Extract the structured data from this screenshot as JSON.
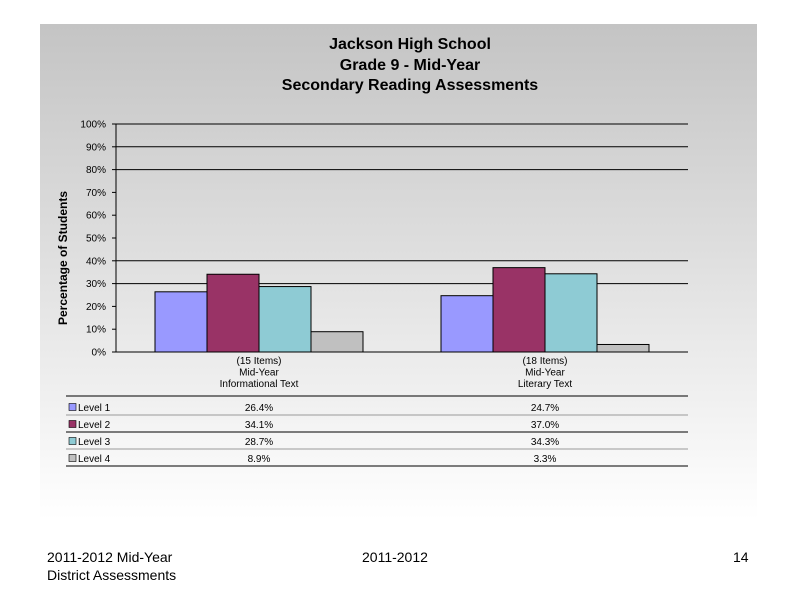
{
  "chart_data": {
    "type": "bar",
    "title_lines": [
      "Jackson High School",
      "Grade 9 - Mid-Year",
      "Secondary Reading Assessments"
    ],
    "ylabel": "Percentage of Students",
    "ylim": [
      0,
      100
    ],
    "y_ticks": [
      "0%",
      "10%",
      "20%",
      "30%",
      "40%",
      "50%",
      "60%",
      "70%",
      "80%",
      "90%",
      "100%"
    ],
    "grid": "horizontal at 30%, 40%, 80%, 90%, 100%",
    "categories": [
      [
        "(15 Items)",
        "Mid-Year",
        "Informational Text"
      ],
      [
        "(18 Items)",
        "Mid-Year",
        "Literary Text"
      ]
    ],
    "series": [
      {
        "name": "Level 1",
        "color": "#9999ff",
        "values": [
          26.4,
          24.7
        ],
        "labels": [
          "26.4%",
          "24.7%"
        ]
      },
      {
        "name": "Level 2",
        "color": "#993366",
        "values": [
          34.1,
          37.0
        ],
        "labels": [
          "34.1%",
          "37.0%"
        ]
      },
      {
        "name": "Level 3",
        "color": "#8ecbd4",
        "values": [
          28.7,
          34.3
        ],
        "labels": [
          "28.7%",
          "34.3%"
        ]
      },
      {
        "name": "Level 4",
        "color": "#c0c0c0",
        "values": [
          8.9,
          3.3
        ],
        "labels": [
          "8.9%",
          "3.3%"
        ]
      }
    ],
    "legend": "data table below chart"
  },
  "footer": {
    "left_line1": "2011-2012  Mid-Year",
    "left_line2": "District Assessments",
    "center": "2011-2012",
    "page_number": "14"
  }
}
